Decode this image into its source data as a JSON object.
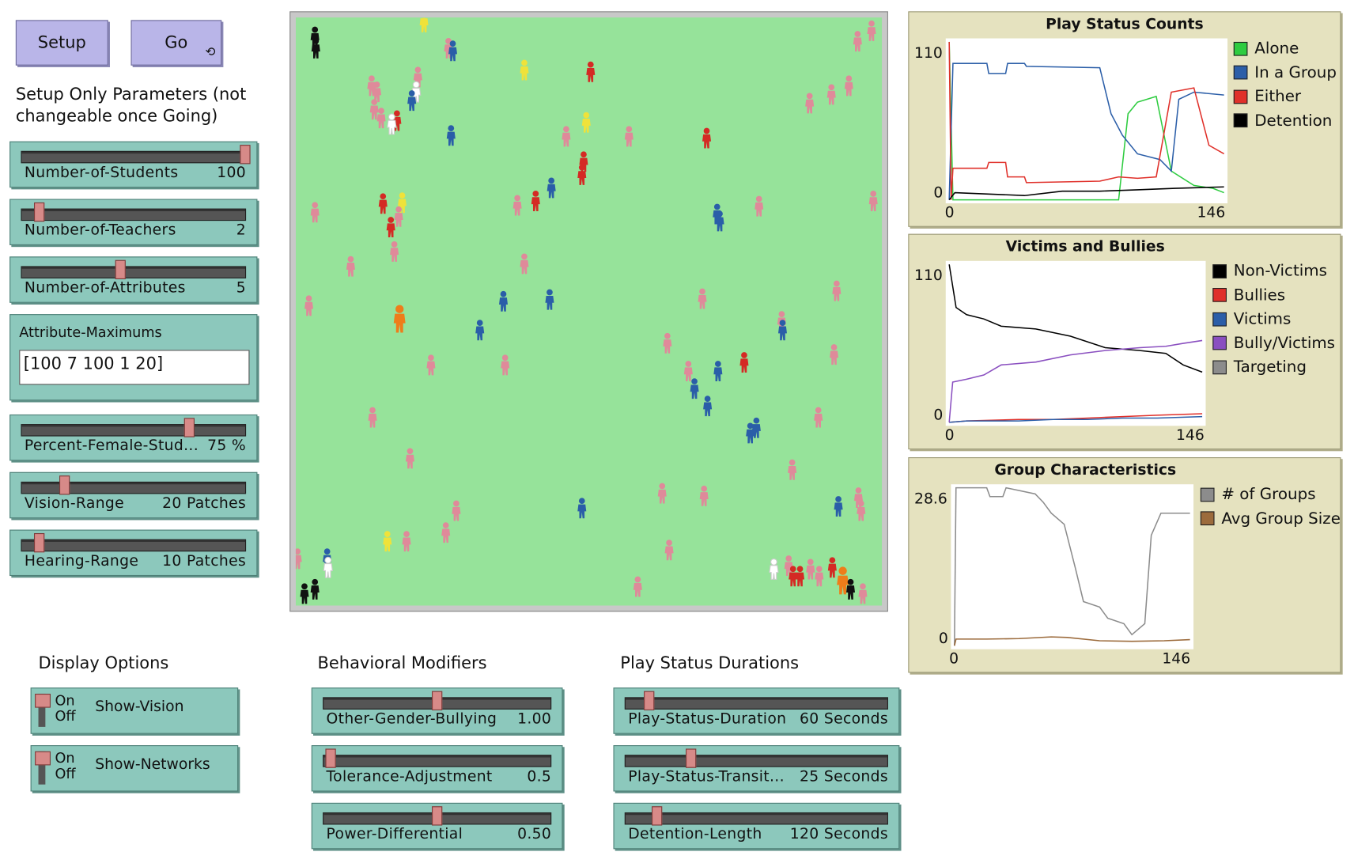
{
  "buttons": {
    "setup": "Setup",
    "go": "Go",
    "go_icon": "forever-icon"
  },
  "setup_caption_line1": "Setup Only Parameters (not",
  "setup_caption_line2": "changeable once Going)",
  "sliders": {
    "num_students": {
      "label": "Number-of-Students",
      "value": "100",
      "fraction": 1.0
    },
    "num_teachers": {
      "label": "Number-of-Teachers",
      "value": "2",
      "fraction": 0.08
    },
    "num_attributes": {
      "label": "Number-of-Attributes",
      "value": "5",
      "fraction": 0.44
    },
    "pct_female": {
      "label": "Percent-Female-Stud...",
      "value": "75 %",
      "fraction": 0.75
    },
    "vision": {
      "label": "Vision-Range",
      "value": "20 Patches",
      "fraction": 0.19
    },
    "hearing": {
      "label": "Hearing-Range",
      "value": "10 Patches",
      "fraction": 0.08
    },
    "other_gender": {
      "label": "Other-Gender-Bullying",
      "value": "1.00",
      "fraction": 0.5
    },
    "tolerance": {
      "label": "Tolerance-Adjustment",
      "value": "0.5",
      "fraction": 0.03
    },
    "power": {
      "label": "Power-Differential",
      "value": "0.50",
      "fraction": 0.5
    },
    "play_duration": {
      "label": "Play-Status-Duration",
      "value": "60 Seconds",
      "fraction": 0.09
    },
    "play_transit": {
      "label": "Play-Status-Transit...",
      "value": "25 Seconds",
      "fraction": 0.25
    },
    "detention": {
      "label": "Detention-Length",
      "value": "120 Seconds",
      "fraction": 0.12
    }
  },
  "attribute_maximums": {
    "label": "Attribute-Maximums",
    "value": "[100 7 100 1 20]"
  },
  "section_headers": {
    "display": "Display Options",
    "behavioral": "Behavioral Modifiers",
    "durations": "Play Status Durations"
  },
  "switches": {
    "show_vision": {
      "label": "Show-Vision",
      "on": "On",
      "off": "Off",
      "state": "off"
    },
    "show_networks": {
      "label": "Show-Networks",
      "on": "On",
      "off": "Off",
      "state": "off"
    }
  },
  "plots": {
    "play_status": {
      "title": "Play Status Counts",
      "ymax_label": "110",
      "ymin_label": "0",
      "xmin_label": "0",
      "xmax_label": "146",
      "legend": [
        {
          "name": "Alone",
          "color": "#2ecc40"
        },
        {
          "name": "In a Group",
          "color": "#2b5ea8"
        },
        {
          "name": "Either",
          "color": "#e0302a"
        },
        {
          "name": "Detention",
          "color": "#000000"
        }
      ]
    },
    "victims": {
      "title": "Victims and Bullies",
      "ymax_label": "110",
      "ymin_label": "0",
      "xmin_label": "0",
      "xmax_label": "146",
      "legend": [
        {
          "name": "Non-Victims",
          "color": "#000000"
        },
        {
          "name": "Bullies",
          "color": "#e0302a"
        },
        {
          "name": "Victims",
          "color": "#2b5ea8"
        },
        {
          "name": "Bully/Victims",
          "color": "#8a4fc0"
        },
        {
          "name": "Targeting",
          "color": "#8c8c8c"
        }
      ]
    },
    "groups": {
      "title": "Group Characteristics",
      "ymax_label": "28.6",
      "ymin_label": "0",
      "xmin_label": "0",
      "xmax_label": "146",
      "legend": [
        {
          "name": "# of Groups",
          "color": "#8c8c8c"
        },
        {
          "name": "Avg Group Size",
          "color": "#9c6b3c"
        }
      ]
    }
  },
  "chart_data": [
    {
      "type": "line",
      "title": "Play Status Counts",
      "xlim": [
        0,
        146
      ],
      "ylim": [
        0,
        110
      ],
      "series": [
        {
          "name": "Alone",
          "color": "#2ecc40",
          "x": [
            0,
            2,
            40,
            80,
            90,
            95,
            100,
            110,
            118,
            130,
            140,
            146
          ],
          "y": [
            110,
            0,
            0,
            0,
            0,
            60,
            68,
            72,
            20,
            10,
            8,
            5
          ]
        },
        {
          "name": "In a Group",
          "color": "#2b5ea8",
          "x": [
            0,
            2,
            20,
            21,
            30,
            31,
            40,
            41,
            80,
            86,
            92,
            100,
            112,
            118,
            122,
            130,
            146
          ],
          "y": [
            0,
            95,
            95,
            88,
            88,
            95,
            95,
            93,
            92,
            60,
            45,
            32,
            28,
            20,
            70,
            75,
            73
          ]
        },
        {
          "name": "Either",
          "color": "#e0302a",
          "x": [
            0,
            1,
            2,
            20,
            21,
            30,
            31,
            40,
            41,
            80,
            90,
            100,
            110,
            118,
            130,
            138,
            146
          ],
          "y": [
            110,
            0,
            22,
            22,
            26,
            26,
            16,
            16,
            12,
            13,
            16,
            15,
            16,
            75,
            78,
            38,
            32
          ]
        },
        {
          "name": "Detention",
          "color": "#000000",
          "x": [
            0,
            3,
            40,
            60,
            80,
            100,
            120,
            146
          ],
          "y": [
            0,
            5,
            3,
            6,
            6,
            7,
            8,
            9
          ]
        }
      ]
    },
    {
      "type": "line",
      "title": "Victims and Bullies",
      "xlim": [
        0,
        146
      ],
      "ylim": [
        0,
        110
      ],
      "series": [
        {
          "name": "Non-Victims",
          "color": "#000000",
          "x": [
            0,
            4,
            10,
            20,
            30,
            50,
            70,
            90,
            110,
            125,
            135,
            146
          ],
          "y": [
            110,
            80,
            75,
            72,
            67,
            65,
            60,
            52,
            50,
            48,
            40,
            35
          ]
        },
        {
          "name": "Bullies",
          "color": "#e0302a",
          "x": [
            0,
            10,
            40,
            60,
            80,
            100,
            120,
            146
          ],
          "y": [
            0,
            1,
            2,
            2,
            3,
            4,
            5,
            6
          ]
        },
        {
          "name": "Victims",
          "color": "#2b5ea8",
          "x": [
            0,
            10,
            40,
            60,
            80,
            100,
            120,
            146
          ],
          "y": [
            0,
            1,
            1,
            2,
            2,
            3,
            3,
            4
          ]
        },
        {
          "name": "Bully/Victims",
          "color": "#8a4fc0",
          "x": [
            0,
            2,
            10,
            20,
            30,
            50,
            70,
            90,
            110,
            125,
            135,
            146
          ],
          "y": [
            0,
            28,
            30,
            33,
            40,
            42,
            47,
            50,
            52,
            53,
            55,
            57
          ]
        }
      ]
    },
    {
      "type": "line",
      "title": "Group Characteristics",
      "xlim": [
        0,
        146
      ],
      "ylim": [
        0,
        28.6
      ],
      "series": [
        {
          "name": "# of Groups",
          "color": "#8c8c8c",
          "x": [
            0,
            1,
            20,
            22,
            30,
            32,
            50,
            55,
            60,
            68,
            75,
            80,
            90,
            95,
            105,
            110,
            118,
            122,
            128,
            146
          ],
          "y": [
            0,
            28.6,
            28.6,
            27,
            27,
            28.6,
            27.5,
            26,
            24,
            22,
            14,
            8,
            7,
            5,
            4,
            2,
            4,
            20,
            24,
            24
          ]
        },
        {
          "name": "Avg Group Size",
          "color": "#9c6b3c",
          "x": [
            0,
            1,
            20,
            40,
            60,
            70,
            90,
            110,
            130,
            146
          ],
          "y": [
            0,
            1.2,
            1.2,
            1.3,
            1.6,
            1.5,
            0.9,
            0.8,
            0.9,
            1.1
          ]
        }
      ]
    }
  ],
  "world": {
    "background_color": "#96e39a",
    "agent_colors": {
      "pink": "#df8a9a",
      "red": "#d42a24",
      "blue": "#2a5ea8",
      "yellow": "#efe23a",
      "white": "#ffffff",
      "black": "#111111",
      "orange": "#ee7d1a"
    }
  }
}
